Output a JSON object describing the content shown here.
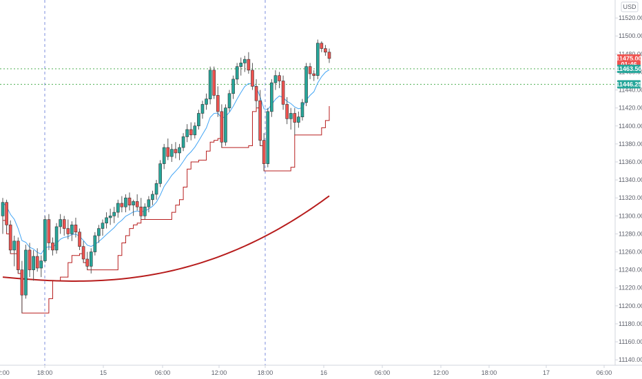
{
  "chart_data": {
    "type": "candlestick",
    "currency": "USD",
    "x_tick_labels": [
      "18:00",
      "15",
      "06:00",
      "12:00",
      "18:00",
      "16",
      "06:00",
      "12:00",
      "18:00",
      "17",
      "06:00"
    ],
    "first_tick_partial": "2:00",
    "y_tick_labels": [
      "11520.00",
      "11500.00",
      "11480.00",
      "11460.00",
      "11440.00",
      "11420.00",
      "11400.00",
      "11380.00",
      "11360.00",
      "11340.00",
      "11320.00",
      "11300.00",
      "11280.00",
      "11260.00",
      "11240.00",
      "11220.00",
      "11200.00",
      "11180.00",
      "11160.00",
      "11140.00"
    ],
    "ylim": [
      11134,
      11540
    ],
    "session_dividers": [
      "18:00",
      "18:00"
    ],
    "price_tags": [
      {
        "label": "11475.00",
        "value": 11475.0,
        "color": "#ef5350"
      },
      {
        "label": "01:46",
        "value": 11468.5,
        "color": "#ef5350"
      },
      {
        "label": "11463.50",
        "value": 11463.5,
        "color": "#26a69a"
      },
      {
        "label": "11446.25",
        "value": 11446.25,
        "color": "#26a69a"
      }
    ],
    "horizontal_levels": [
      11463.5,
      11446.25
    ],
    "level_color": "#4caf50",
    "colors": {
      "up": "#26a69a",
      "down": "#ef5350",
      "ema_fast": "#42a5f5",
      "trail": "#b71c1c",
      "ema_slow": "#b71c1c",
      "divider": "#7b8cde",
      "grid": "#e0e3eb"
    },
    "ohlc": [
      [
        11300,
        11320,
        11280,
        11315
      ],
      [
        11315,
        11318,
        11282,
        11290
      ],
      [
        11290,
        11295,
        11258,
        11262
      ],
      [
        11262,
        11278,
        11244,
        11272
      ],
      [
        11272,
        11276,
        11236,
        11240
      ],
      [
        11240,
        11250,
        11192,
        11212
      ],
      [
        11212,
        11268,
        11208,
        11262
      ],
      [
        11262,
        11270,
        11232,
        11240
      ],
      [
        11240,
        11262,
        11228,
        11255
      ],
      [
        11255,
        11264,
        11238,
        11242
      ],
      [
        11242,
        11256,
        11232,
        11250
      ],
      [
        11250,
        11300,
        11248,
        11296
      ],
      [
        11296,
        11302,
        11262,
        11270
      ],
      [
        11270,
        11276,
        11256,
        11262
      ],
      [
        11262,
        11292,
        11258,
        11288
      ],
      [
        11288,
        11302,
        11280,
        11296
      ],
      [
        11296,
        11300,
        11278,
        11286
      ],
      [
        11286,
        11296,
        11274,
        11280
      ],
      [
        11280,
        11294,
        11272,
        11290
      ],
      [
        11290,
        11298,
        11276,
        11282
      ],
      [
        11282,
        11286,
        11262,
        11266
      ],
      [
        11266,
        11272,
        11248,
        11252
      ],
      [
        11252,
        11260,
        11240,
        11244
      ],
      [
        11244,
        11264,
        11236,
        11260
      ],
      [
        11260,
        11282,
        11256,
        11278
      ],
      [
        11278,
        11290,
        11270,
        11286
      ],
      [
        11286,
        11296,
        11278,
        11292
      ],
      [
        11292,
        11304,
        11286,
        11298
      ],
      [
        11298,
        11308,
        11290,
        11300
      ],
      [
        11300,
        11310,
        11292,
        11304
      ],
      [
        11304,
        11318,
        11298,
        11314
      ],
      [
        11314,
        11322,
        11304,
        11310
      ],
      [
        11310,
        11324,
        11304,
        11320
      ],
      [
        11320,
        11326,
        11306,
        11312
      ],
      [
        11312,
        11318,
        11300,
        11316
      ],
      [
        11316,
        11324,
        11306,
        11310
      ],
      [
        11310,
        11320,
        11296,
        11300
      ],
      [
        11300,
        11314,
        11296,
        11310
      ],
      [
        11310,
        11322,
        11304,
        11318
      ],
      [
        11318,
        11328,
        11312,
        11324
      ],
      [
        11324,
        11340,
        11318,
        11336
      ],
      [
        11336,
        11362,
        11332,
        11358
      ],
      [
        11358,
        11380,
        11352,
        11376
      ],
      [
        11376,
        11386,
        11362,
        11366
      ],
      [
        11366,
        11380,
        11360,
        11374
      ],
      [
        11374,
        11382,
        11364,
        11370
      ],
      [
        11370,
        11380,
        11362,
        11376
      ],
      [
        11376,
        11392,
        11372,
        11388
      ],
      [
        11388,
        11402,
        11382,
        11396
      ],
      [
        11396,
        11404,
        11384,
        11390
      ],
      [
        11390,
        11404,
        11386,
        11400
      ],
      [
        11400,
        11418,
        11396,
        11414
      ],
      [
        11414,
        11428,
        11408,
        11424
      ],
      [
        11424,
        11436,
        11418,
        11430
      ],
      [
        11430,
        11466,
        11424,
        11462
      ],
      [
        11462,
        11466,
        11430,
        11434
      ],
      [
        11434,
        11444,
        11410,
        11416
      ],
      [
        11416,
        11424,
        11376,
        11382
      ],
      [
        11382,
        11424,
        11378,
        11420
      ],
      [
        11420,
        11440,
        11416,
        11436
      ],
      [
        11436,
        11456,
        11430,
        11452
      ],
      [
        11452,
        11470,
        11446,
        11466
      ],
      [
        11466,
        11476,
        11456,
        11470
      ],
      [
        11470,
        11478,
        11460,
        11474
      ],
      [
        11474,
        11482,
        11458,
        11462
      ],
      [
        11462,
        11470,
        11440,
        11444
      ],
      [
        11444,
        11452,
        11420,
        11428
      ],
      [
        11428,
        11440,
        11378,
        11384
      ],
      [
        11384,
        11392,
        11350,
        11358
      ],
      [
        11358,
        11420,
        11354,
        11416
      ],
      [
        11416,
        11452,
        11410,
        11448
      ],
      [
        11448,
        11462,
        11440,
        11456
      ],
      [
        11456,
        11460,
        11442,
        11450
      ],
      [
        11450,
        11456,
        11418,
        11424
      ],
      [
        11424,
        11432,
        11402,
        11408
      ],
      [
        11408,
        11420,
        11396,
        11414
      ],
      [
        11414,
        11420,
        11390,
        11404
      ],
      [
        11404,
        11416,
        11398,
        11410
      ],
      [
        11410,
        11430,
        11406,
        11426
      ],
      [
        11426,
        11470,
        11422,
        11466
      ],
      [
        11466,
        11470,
        11452,
        11458
      ],
      [
        11458,
        11462,
        11450,
        11456
      ],
      [
        11456,
        11496,
        11452,
        11492
      ],
      [
        11492,
        11494,
        11482,
        11486
      ],
      [
        11486,
        11490,
        11478,
        11482
      ],
      [
        11482,
        11486,
        11470,
        11475
      ]
    ]
  }
}
